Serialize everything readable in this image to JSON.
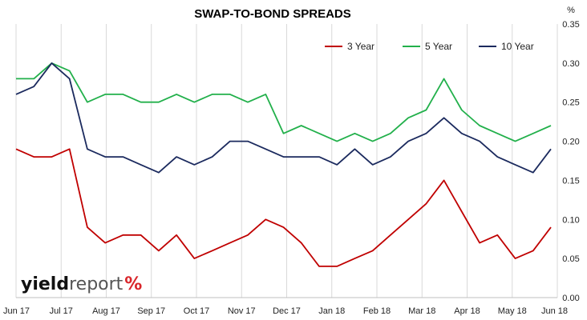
{
  "chart_data": {
    "type": "line",
    "title": "SWAP-TO-BOND SPREADS",
    "ylabel": "%",
    "ylim": [
      0,
      0.35
    ],
    "y_ticks": [
      "0.00",
      "0.05",
      "0.10",
      "0.15",
      "0.20",
      "0.25",
      "0.30",
      "0.35"
    ],
    "x_ticks": [
      "Jun 17",
      "Jul 17",
      "Aug 17",
      "Sep 17",
      "Oct 17",
      "Nov 17",
      "Dec 17",
      "Jan 18",
      "Feb 18",
      "Mar 18",
      "Apr 18",
      "May 18",
      "Jun 18"
    ],
    "grid": "vertical",
    "legend": "top-right",
    "x": [
      "Jun 17",
      "Jun 17",
      "Jul 17",
      "Jul 17",
      "Jul 17",
      "Aug 17",
      "Aug 17",
      "Sep 17",
      "Sep 17",
      "Sep 17",
      "Oct 17",
      "Oct 17",
      "Nov 17",
      "Nov 17",
      "Nov 17",
      "Dec 17",
      "Dec 17",
      "Jan 18",
      "Jan 18",
      "Jan 18",
      "Feb 18",
      "Feb 18",
      "Mar 18",
      "Mar 18",
      "Mar 18",
      "Apr 18",
      "Apr 18",
      "May 18",
      "May 18",
      "May 18",
      "Jun 18"
    ],
    "series": [
      {
        "name": "3 Year",
        "color": "#c00000",
        "values": [
          0.19,
          0.18,
          0.18,
          0.19,
          0.09,
          0.07,
          0.08,
          0.08,
          0.06,
          0.08,
          0.05,
          0.06,
          0.07,
          0.08,
          0.1,
          0.09,
          0.07,
          0.04,
          0.04,
          0.05,
          0.06,
          0.08,
          0.1,
          0.12,
          0.15,
          0.11,
          0.07,
          0.08,
          0.05,
          0.06,
          0.09
        ]
      },
      {
        "name": "5 Year",
        "color": "#22b04b",
        "values": [
          0.28,
          0.28,
          0.3,
          0.29,
          0.25,
          0.26,
          0.26,
          0.25,
          0.25,
          0.26,
          0.25,
          0.26,
          0.26,
          0.25,
          0.26,
          0.21,
          0.22,
          0.21,
          0.2,
          0.21,
          0.2,
          0.21,
          0.23,
          0.24,
          0.28,
          0.24,
          0.22,
          0.21,
          0.2,
          0.21,
          0.22
        ]
      },
      {
        "name": "10 Year",
        "color": "#1b2a5e",
        "values": [
          0.26,
          0.27,
          0.3,
          0.28,
          0.19,
          0.18,
          0.18,
          0.17,
          0.16,
          0.18,
          0.17,
          0.18,
          0.2,
          0.2,
          0.19,
          0.18,
          0.18,
          0.18,
          0.17,
          0.19,
          0.17,
          0.18,
          0.2,
          0.21,
          0.23,
          0.21,
          0.2,
          0.18,
          0.17,
          0.16,
          0.19
        ]
      }
    ]
  },
  "logo": {
    "text_a": "yield",
    "text_b": "report",
    "text_c": "%"
  }
}
